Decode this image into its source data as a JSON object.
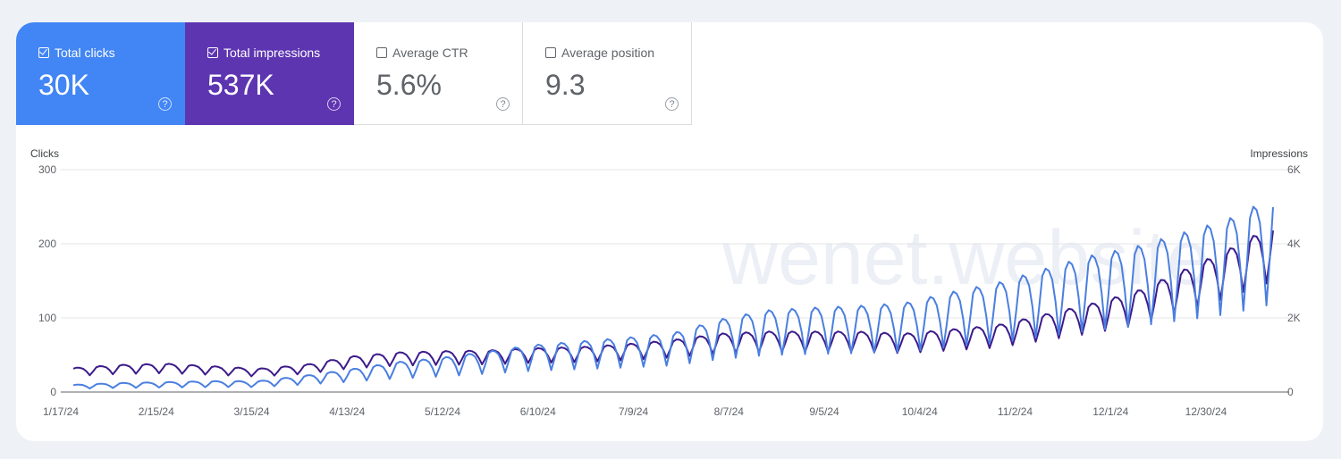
{
  "metrics": [
    {
      "label": "Total clicks",
      "value": "30K",
      "active": true,
      "color": "#4285f4",
      "help_icon": "help-circle-icon"
    },
    {
      "label": "Total impressions",
      "value": "537K",
      "active": true,
      "color": "#5e35b1",
      "help_icon": "help-circle-icon"
    },
    {
      "label": "Average CTR",
      "value": "5.6%",
      "active": false,
      "color": "#ffffff",
      "help_icon": "help-circle-icon"
    },
    {
      "label": "Average position",
      "value": "9.3",
      "active": false,
      "color": "#ffffff",
      "help_icon": "help-circle-icon"
    }
  ],
  "watermark": "wenet.website",
  "chart_data": {
    "type": "line",
    "left_axis_title": "Clicks",
    "right_axis_title": "Impressions",
    "left_ylim": [
      0,
      300
    ],
    "right_ylim": [
      0,
      6000
    ],
    "left_ticks": [
      "0",
      "100",
      "200",
      "300"
    ],
    "right_ticks": [
      "0",
      "2K",
      "4K",
      "6K"
    ],
    "x_start": "2024-01-17",
    "x_end": "2025-01-15",
    "x_ticks": [
      "1/17/24",
      "2/15/24",
      "3/15/24",
      "4/13/24",
      "5/12/24",
      "6/10/24",
      "7/9/24",
      "8/7/24",
      "9/5/24",
      "10/4/24",
      "11/2/24",
      "12/1/24",
      "12/30/24"
    ],
    "grid": true,
    "series": [
      {
        "name": "Clicks",
        "axis": "left",
        "color": "#4a7fe0",
        "points": [
          {
            "date": "2024-01-17",
            "v": 8
          },
          {
            "date": "2024-01-31",
            "v": 10
          },
          {
            "date": "2024-02-14",
            "v": 11
          },
          {
            "date": "2024-02-28",
            "v": 12
          },
          {
            "date": "2024-03-13",
            "v": 12
          },
          {
            "date": "2024-03-27",
            "v": 18
          },
          {
            "date": "2024-04-10",
            "v": 25
          },
          {
            "date": "2024-04-24",
            "v": 33
          },
          {
            "date": "2024-05-08",
            "v": 38
          },
          {
            "date": "2024-05-22",
            "v": 45
          },
          {
            "date": "2024-06-05",
            "v": 52
          },
          {
            "date": "2024-06-19",
            "v": 56
          },
          {
            "date": "2024-07-03",
            "v": 60
          },
          {
            "date": "2024-07-17",
            "v": 65
          },
          {
            "date": "2024-07-31",
            "v": 80
          },
          {
            "date": "2024-08-14",
            "v": 90
          },
          {
            "date": "2024-08-28",
            "v": 93
          },
          {
            "date": "2024-09-11",
            "v": 95
          },
          {
            "date": "2024-09-25",
            "v": 98
          },
          {
            "date": "2024-10-09",
            "v": 110
          },
          {
            "date": "2024-10-23",
            "v": 120
          },
          {
            "date": "2024-11-06",
            "v": 135
          },
          {
            "date": "2024-11-20",
            "v": 150
          },
          {
            "date": "2024-12-04",
            "v": 160
          },
          {
            "date": "2024-12-18",
            "v": 175
          },
          {
            "date": "2025-01-01",
            "v": 190
          },
          {
            "date": "2025-01-15",
            "v": 215
          }
        ]
      },
      {
        "name": "Impressions",
        "axis": "right",
        "color": "#3c1a8a",
        "points": [
          {
            "date": "2024-01-17",
            "v": 580
          },
          {
            "date": "2024-01-31",
            "v": 650
          },
          {
            "date": "2024-02-14",
            "v": 680
          },
          {
            "date": "2024-02-28",
            "v": 620
          },
          {
            "date": "2024-03-13",
            "v": 560
          },
          {
            "date": "2024-03-27",
            "v": 650
          },
          {
            "date": "2024-04-10",
            "v": 850
          },
          {
            "date": "2024-04-24",
            "v": 950
          },
          {
            "date": "2024-05-08",
            "v": 980
          },
          {
            "date": "2024-05-22",
            "v": 1000
          },
          {
            "date": "2024-06-05",
            "v": 1050
          },
          {
            "date": "2024-06-19",
            "v": 1080
          },
          {
            "date": "2024-07-03",
            "v": 1150
          },
          {
            "date": "2024-07-17",
            "v": 1250
          },
          {
            "date": "2024-07-31",
            "v": 1400
          },
          {
            "date": "2024-08-14",
            "v": 1450
          },
          {
            "date": "2024-08-28",
            "v": 1450
          },
          {
            "date": "2024-09-11",
            "v": 1450
          },
          {
            "date": "2024-09-25",
            "v": 1400
          },
          {
            "date": "2024-10-09",
            "v": 1500
          },
          {
            "date": "2024-10-23",
            "v": 1600
          },
          {
            "date": "2024-11-06",
            "v": 1850
          },
          {
            "date": "2024-11-20",
            "v": 2100
          },
          {
            "date": "2024-12-04",
            "v": 2400
          },
          {
            "date": "2024-12-18",
            "v": 2900
          },
          {
            "date": "2025-01-01",
            "v": 3400
          },
          {
            "date": "2025-01-15",
            "v": 4000
          }
        ]
      }
    ]
  }
}
